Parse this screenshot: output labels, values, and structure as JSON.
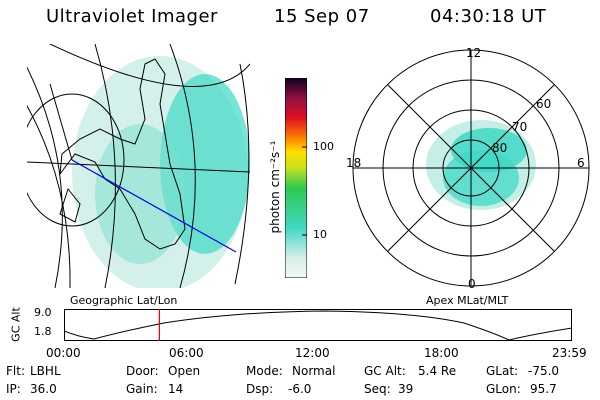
{
  "header": {
    "instrument": "Ultraviolet Imager",
    "date": "15 Sep 07",
    "time": "04:30:18 UT"
  },
  "left_panel": {
    "caption": "Geographic Lat/Lon"
  },
  "right_panel": {
    "caption": "Apex MLat/MLT",
    "mlt_labels": {
      "top": "12",
      "bottom": "0",
      "left": "18",
      "right": "6"
    },
    "lat_labels": [
      "60",
      "70",
      "80"
    ]
  },
  "colorbar": {
    "label": "photon cm⁻²s⁻¹",
    "ticks": [
      "100",
      "10"
    ],
    "scale": "log"
  },
  "timeline": {
    "ylabel": "GC Alt",
    "y_ticks": [
      "9.0",
      "1.8"
    ],
    "x_ticks": [
      "00:00",
      "06:00",
      "12:00",
      "18:00",
      "23:59"
    ],
    "current_time_hours": 4.505,
    "marker_color": "#e00000"
  },
  "info": {
    "row1": [
      {
        "label": "Flt:",
        "value": "LBHL"
      },
      {
        "label": "Door:",
        "value": "Open"
      },
      {
        "label": "Mode:",
        "value": "Normal"
      },
      {
        "label": "GC Alt:",
        "value": "5.4 Re"
      },
      {
        "label": "GLat:",
        "value": "-75.0"
      }
    ],
    "row2": [
      {
        "label": "IP:",
        "value": "36.0"
      },
      {
        "label": "Gain:",
        "value": "14"
      },
      {
        "label": "Dsp:",
        "value": "-6.0"
      },
      {
        "label": "Seq:",
        "value": "39"
      },
      {
        "label": "GLon:",
        "value": "95.7"
      }
    ]
  }
}
